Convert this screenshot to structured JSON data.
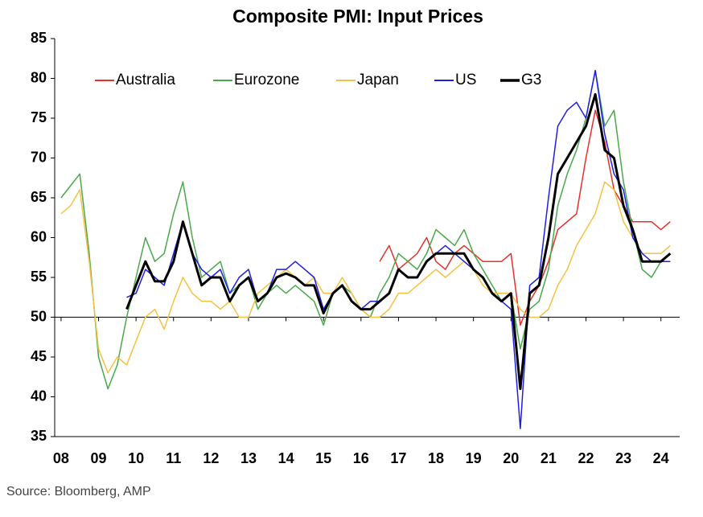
{
  "chart_data": {
    "type": "line",
    "title": "Composite PMI: Input Prices",
    "source": "Source: Bloomberg, AMP",
    "x": [
      2008,
      2008.25,
      2008.5,
      2008.75,
      2009,
      2009.25,
      2009.5,
      2009.75,
      2010,
      2010.25,
      2010.5,
      2010.75,
      2011,
      2011.25,
      2011.5,
      2011.75,
      2012,
      2012.25,
      2012.5,
      2012.75,
      2013,
      2013.25,
      2013.5,
      2013.75,
      2014,
      2014.25,
      2014.5,
      2014.75,
      2015,
      2015.25,
      2015.5,
      2015.75,
      2016,
      2016.25,
      2016.5,
      2016.75,
      2017,
      2017.25,
      2017.5,
      2017.75,
      2018,
      2018.25,
      2018.5,
      2018.75,
      2019,
      2019.25,
      2019.5,
      2019.75,
      2020,
      2020.25,
      2020.5,
      2020.75,
      2021,
      2021.25,
      2021.5,
      2021.75,
      2022,
      2022.25,
      2022.5,
      2022.75,
      2023,
      2023.25,
      2023.5,
      2023.75,
      2024,
      2024.25
    ],
    "series": [
      {
        "name": "Australia",
        "color": "#e8302a",
        "width": 1.5,
        "values": [
          null,
          null,
          null,
          null,
          null,
          null,
          null,
          null,
          null,
          null,
          null,
          null,
          null,
          null,
          null,
          null,
          null,
          null,
          null,
          null,
          null,
          null,
          null,
          null,
          null,
          null,
          null,
          null,
          null,
          null,
          null,
          null,
          null,
          null,
          57,
          59,
          56,
          57,
          58,
          60,
          57,
          56,
          58,
          59,
          58,
          57,
          57,
          57,
          58,
          49,
          52,
          54,
          57,
          61,
          62,
          63,
          70,
          76,
          72,
          66,
          64,
          62,
          62,
          62,
          61,
          62
        ]
      },
      {
        "name": "Eurozone",
        "color": "#4aa84a",
        "width": 1.5,
        "values": [
          65,
          66.5,
          68,
          58,
          45,
          41,
          44,
          50,
          55,
          60,
          57,
          58,
          63,
          67,
          60,
          55,
          56,
          57,
          53,
          54,
          55,
          51,
          53,
          54,
          53,
          54,
          53,
          52,
          49,
          53,
          54,
          53,
          51,
          50,
          53,
          55,
          58,
          57,
          56,
          58,
          61,
          60,
          59,
          61,
          58,
          56,
          54,
          52,
          53,
          46,
          51,
          52,
          56,
          64,
          68,
          71,
          75,
          81,
          74,
          76,
          67,
          61,
          56,
          55,
          57,
          58
        ]
      },
      {
        "name": "Japan",
        "color": "#f5c242",
        "width": 1.5,
        "values": [
          63,
          64,
          66,
          57,
          46,
          43,
          45,
          44,
          47,
          50,
          51,
          48.5,
          52,
          55,
          53,
          52,
          52,
          51,
          52,
          50,
          50,
          53,
          54,
          55,
          56,
          55,
          54,
          55,
          53,
          53,
          55,
          53,
          51,
          50,
          50,
          51,
          53,
          53,
          54,
          55,
          56,
          55,
          56,
          57,
          56,
          54,
          53,
          53,
          53,
          51,
          50,
          50,
          51,
          54,
          56,
          59,
          61,
          63,
          67,
          66,
          62,
          60,
          58,
          58,
          58,
          59
        ]
      },
      {
        "name": "US",
        "color": "#1f1fe0",
        "width": 1.5,
        "values": [
          null,
          null,
          null,
          null,
          null,
          null,
          null,
          52.5,
          53,
          56,
          55,
          54,
          58,
          62,
          58,
          56,
          55,
          56,
          53,
          55,
          56,
          52,
          53,
          56,
          56,
          57,
          56,
          55,
          51,
          53,
          54,
          52,
          51,
          52,
          52,
          53,
          56,
          55,
          55,
          57,
          58,
          59,
          58,
          57,
          56,
          55,
          53,
          52,
          51,
          36,
          54,
          55,
          65,
          74,
          76,
          77,
          75,
          81,
          73,
          68,
          66,
          60,
          58,
          57,
          57,
          57
        ]
      },
      {
        "name": "G3",
        "color": "#000000",
        "width": 3,
        "values": [
          null,
          null,
          null,
          null,
          null,
          null,
          null,
          51,
          54,
          57,
          54.5,
          54.5,
          57,
          62,
          58,
          54,
          55,
          55,
          52,
          54,
          55,
          52,
          53,
          55,
          55.5,
          55,
          54,
          54,
          50.5,
          53,
          54,
          52,
          51,
          51,
          52,
          53,
          56,
          55,
          55,
          57,
          58,
          58,
          58,
          58,
          56,
          55,
          53,
          52,
          53,
          41,
          53,
          54,
          60,
          68,
          70,
          72,
          74,
          78,
          71,
          70,
          64,
          61,
          57,
          57,
          57,
          58
        ]
      }
    ],
    "xlim": [
      2007.83,
      2024.5
    ],
    "xticks": [
      {
        "value": 2008,
        "label": "08"
      },
      {
        "value": 2009,
        "label": "09"
      },
      {
        "value": 2010,
        "label": "10"
      },
      {
        "value": 2011,
        "label": "11"
      },
      {
        "value": 2012,
        "label": "12"
      },
      {
        "value": 2013,
        "label": "13"
      },
      {
        "value": 2014,
        "label": "14"
      },
      {
        "value": 2015,
        "label": "15"
      },
      {
        "value": 2016,
        "label": "16"
      },
      {
        "value": 2017,
        "label": "17"
      },
      {
        "value": 2018,
        "label": "18"
      },
      {
        "value": 2019,
        "label": "19"
      },
      {
        "value": 2020,
        "label": "20"
      },
      {
        "value": 2021,
        "label": "21"
      },
      {
        "value": 2022,
        "label": "22"
      },
      {
        "value": 2023,
        "label": "23"
      },
      {
        "value": 2024,
        "label": "24"
      }
    ],
    "ylim": [
      35,
      85
    ],
    "yticks": [
      35,
      40,
      45,
      50,
      55,
      60,
      65,
      70,
      75,
      80,
      85
    ],
    "x_axis_crosses": 50,
    "legend": "top-left",
    "grid": false
  }
}
